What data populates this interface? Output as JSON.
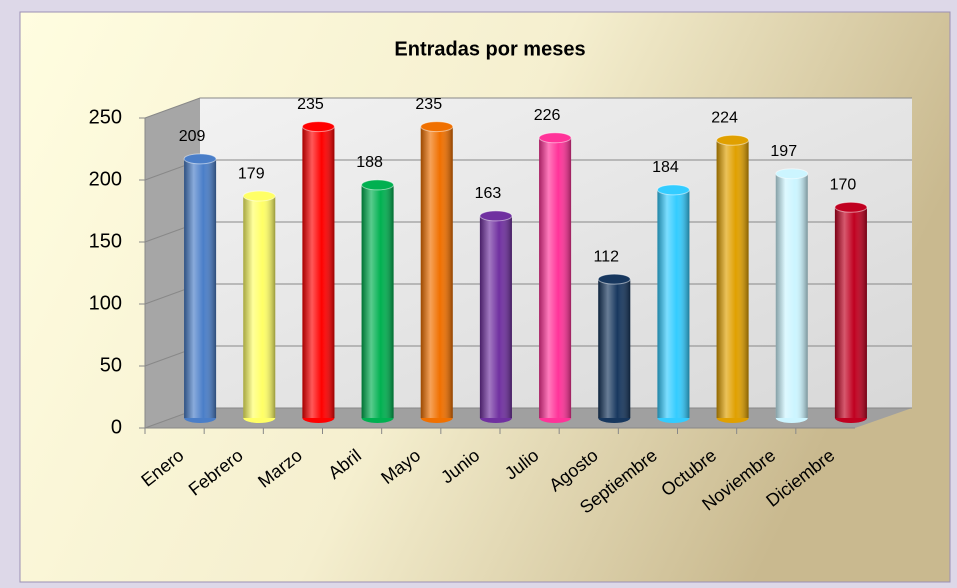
{
  "chart_data": {
    "type": "bar",
    "title": "Entradas por meses",
    "categories": [
      "Enero",
      "Febrero",
      "Marzo",
      "Abril",
      "Mayo",
      "Junio",
      "Julio",
      "Agosto",
      "Septiembre",
      "Octubre",
      "Noviembre",
      "Diciembre"
    ],
    "values": [
      209,
      179,
      235,
      188,
      235,
      163,
      226,
      112,
      184,
      224,
      197,
      170
    ],
    "colors": [
      "#4a7ec8",
      "#ffff66",
      "#ff0000",
      "#00b050",
      "#f07000",
      "#7030a0",
      "#ff3399",
      "#17375e",
      "#33ccff",
      "#e0a000",
      "#ccf5ff",
      "#c00020"
    ],
    "ylim": [
      0,
      250
    ],
    "yticks": [
      0,
      50,
      100,
      150,
      200,
      250
    ],
    "grid": true
  }
}
